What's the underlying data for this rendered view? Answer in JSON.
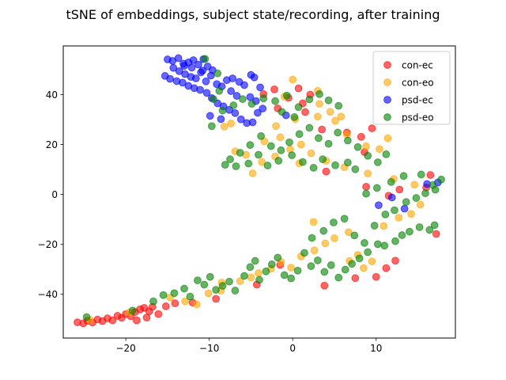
{
  "chart_data": {
    "type": "scatter",
    "title": "tSNE of embeddings, subject state/recording, after training",
    "xlabel": "",
    "ylabel": "",
    "xlim": [
      -27.5,
      19.5
    ],
    "ylim": [
      -57.5,
      59.5
    ],
    "xticks": [
      -20,
      -10,
      0,
      10
    ],
    "yticks": [
      -40,
      -20,
      0,
      20,
      40
    ],
    "grid": false,
    "legend_position": "top-right",
    "series": [
      {
        "name": "con-ec",
        "color": "#ff0000",
        "points": [
          [
            -25.8,
            -51.2
          ],
          [
            -25.1,
            -51.6
          ],
          [
            -24.6,
            -50.6
          ],
          [
            -24.0,
            -51.3
          ],
          [
            -23.4,
            -50.1
          ],
          [
            -22.8,
            -50.7
          ],
          [
            -22.2,
            -49.6
          ],
          [
            -21.6,
            -50.4
          ],
          [
            -21.0,
            -48.6
          ],
          [
            -20.5,
            -49.4
          ],
          [
            -20.0,
            -47.9
          ],
          [
            -19.4,
            -48.8
          ],
          [
            -18.9,
            -47.1
          ],
          [
            -18.3,
            -46.0
          ],
          [
            -17.8,
            -45.4
          ],
          [
            -17.2,
            -46.8
          ],
          [
            -16.8,
            -45.0
          ],
          [
            -18.7,
            -50.4
          ],
          [
            -17.5,
            -49.3
          ],
          [
            -16.1,
            -47.9
          ],
          [
            -15.2,
            -44.8
          ],
          [
            -14.1,
            -43.6
          ],
          [
            -12.0,
            -43.3
          ],
          [
            -9.2,
            -41.8
          ],
          [
            -4.3,
            -36.1
          ],
          [
            -1.5,
            -28.2
          ],
          [
            3.8,
            -36.5
          ],
          [
            7.5,
            -33.5
          ],
          [
            11.2,
            -29.5
          ],
          [
            10.0,
            -33.0
          ],
          [
            8.8,
            3.1
          ],
          [
            11.5,
            -0.5
          ],
          [
            16.0,
            2.8
          ],
          [
            17.2,
            -15.8
          ],
          [
            16.5,
            7.8
          ],
          [
            12.8,
            2.0
          ],
          [
            4.0,
            9.2
          ],
          [
            8.6,
            17.0
          ],
          [
            6.5,
            24.8
          ],
          [
            8.2,
            23.1
          ],
          [
            9.5,
            26.5
          ],
          [
            3.5,
            26.0
          ],
          [
            1.2,
            36.5
          ],
          [
            -0.5,
            38.7
          ],
          [
            0.7,
            42.5
          ],
          [
            2.1,
            40.0
          ],
          [
            -1.8,
            34.5
          ],
          [
            1.5,
            33.0
          ],
          [
            -3.5,
            40.2
          ],
          [
            -2.2,
            42.1
          ],
          [
            12.3,
            -26.5
          ]
        ]
      },
      {
        "name": "con-eo",
        "color": "#ffa500",
        "points": [
          [
            -24.3,
            -50.2
          ],
          [
            -19.6,
            -47.3
          ],
          [
            -14.7,
            -41.3
          ],
          [
            -12.9,
            -42.8
          ],
          [
            -10.1,
            -39.6
          ],
          [
            -8.5,
            -35.3
          ],
          [
            -6.3,
            -34.7
          ],
          [
            -5.0,
            -33.2
          ],
          [
            -4.1,
            -31.5
          ],
          [
            -2.6,
            -29.8
          ],
          [
            -1.4,
            -27.0
          ],
          [
            -0.2,
            -29.3
          ],
          [
            1.0,
            -24.8
          ],
          [
            2.6,
            -22.4
          ],
          [
            3.9,
            -19.6
          ],
          [
            5.0,
            -17.5
          ],
          [
            6.7,
            -15.1
          ],
          [
            7.8,
            -24.2
          ],
          [
            9.5,
            -26.8
          ],
          [
            10.9,
            -12.6
          ],
          [
            12.7,
            -9.3
          ],
          [
            14.2,
            -7.8
          ],
          [
            15.3,
            -4.1
          ],
          [
            14.6,
            3.9
          ],
          [
            12.1,
            6.2
          ],
          [
            9.0,
            8.4
          ],
          [
            6.2,
            10.9
          ],
          [
            4.0,
            13.5
          ],
          [
            2.2,
            16.5
          ],
          [
            1.0,
            20.0
          ],
          [
            -0.3,
            18.1
          ],
          [
            -2.1,
            15.2
          ],
          [
            -3.7,
            13.0
          ],
          [
            -4.8,
            8.5
          ],
          [
            -5.6,
            15.9
          ],
          [
            -6.9,
            17.3
          ],
          [
            -7.4,
            28.4
          ],
          [
            -8.2,
            27.2
          ],
          [
            -2.0,
            27.4
          ],
          [
            0.3,
            30.2
          ],
          [
            3.0,
            31.2
          ],
          [
            5.1,
            29.5
          ],
          [
            5.8,
            31.2
          ],
          [
            3.2,
            36.3
          ],
          [
            4.5,
            33.1
          ],
          [
            0.0,
            46.0
          ],
          [
            3.0,
            41.5
          ],
          [
            -1.0,
            39.2
          ],
          [
            6.5,
            24.0
          ],
          [
            8.8,
            19.3
          ],
          [
            11.4,
            22.5
          ],
          [
            10.4,
            18.2
          ],
          [
            -3.4,
            21.3
          ],
          [
            -1.5,
            22.9
          ],
          [
            0.8,
            12.5
          ],
          [
            6.8,
            -26.6
          ],
          [
            8.5,
            -29.5
          ],
          [
            -8.6,
            -38.5
          ],
          [
            -11.5,
            -44.0
          ],
          [
            2.5,
            -11.0
          ]
        ]
      },
      {
        "name": "psd-ec",
        "color": "#0000ff",
        "points": [
          [
            -15.0,
            54.1
          ],
          [
            -14.4,
            53.5
          ],
          [
            -13.7,
            54.6
          ],
          [
            -13.1,
            52.4
          ],
          [
            -12.5,
            52.9
          ],
          [
            -11.9,
            53.8
          ],
          [
            -11.3,
            52.0
          ],
          [
            -10.7,
            54.2
          ],
          [
            -10.2,
            51.3
          ],
          [
            -9.6,
            49.8
          ],
          [
            -14.3,
            50.7
          ],
          [
            -13.6,
            49.4
          ],
          [
            -12.9,
            48.2
          ],
          [
            -12.2,
            47.1
          ],
          [
            -11.6,
            46.5
          ],
          [
            -11.0,
            48.9
          ],
          [
            -10.4,
            45.3
          ],
          [
            -9.8,
            47.6
          ],
          [
            -9.1,
            44.2
          ],
          [
            -8.5,
            43.3
          ],
          [
            -15.3,
            47.5
          ],
          [
            -14.7,
            46.3
          ],
          [
            -13.9,
            45.4
          ],
          [
            -13.2,
            44.8
          ],
          [
            -12.5,
            43.5
          ],
          [
            -11.8,
            42.6
          ],
          [
            -11.1,
            41.9
          ],
          [
            -10.3,
            40.7
          ],
          [
            -9.7,
            38.6
          ],
          [
            -9.0,
            36.5
          ],
          [
            -8.3,
            35.3
          ],
          [
            -7.6,
            33.9
          ],
          [
            -6.9,
            32.6
          ],
          [
            -6.2,
            30.1
          ],
          [
            -5.5,
            28.6
          ],
          [
            -4.8,
            28.9
          ],
          [
            -4.2,
            32.7
          ],
          [
            -3.6,
            34.4
          ],
          [
            -7.9,
            45.8
          ],
          [
            -7.2,
            46.5
          ],
          [
            -6.4,
            45.1
          ],
          [
            -5.8,
            43.8
          ],
          [
            -5.0,
            47.9
          ],
          [
            -4.6,
            46.9
          ],
          [
            -3.9,
            42.9
          ],
          [
            -4.4,
            37.4
          ],
          [
            -5.1,
            39.0
          ],
          [
            -6.7,
            39.5
          ],
          [
            -9.9,
            31.5
          ],
          [
            -8.6,
            30.2
          ],
          [
            -0.8,
            31.7
          ],
          [
            10.3,
            -4.3
          ],
          [
            11.9,
            -1.2
          ],
          [
            13.4,
            -5.7
          ],
          [
            16.1,
            4.2
          ],
          [
            17.4,
            4.8
          ],
          [
            -12.1,
            50.8
          ],
          [
            -10.8,
            49.6
          ],
          [
            -13.0,
            51.5
          ],
          [
            -7.4,
            41.4
          ]
        ]
      },
      {
        "name": "psd-eo",
        "color": "#008000",
        "points": [
          [
            -24.7,
            -49.1
          ],
          [
            -19.2,
            -46.5
          ],
          [
            -16.7,
            -42.8
          ],
          [
            -15.5,
            -40.3
          ],
          [
            -14.2,
            -39.5
          ],
          [
            -13.0,
            -37.7
          ],
          [
            -12.3,
            -40.9
          ],
          [
            -11.4,
            -34.4
          ],
          [
            -10.6,
            -36.1
          ],
          [
            -9.9,
            -33.0
          ],
          [
            -9.2,
            -38.2
          ],
          [
            -8.4,
            -36.6
          ],
          [
            -7.6,
            -34.9
          ],
          [
            -6.9,
            -38.5
          ],
          [
            -5.8,
            -32.6
          ],
          [
            -5.1,
            -29.1
          ],
          [
            -4.5,
            -26.6
          ],
          [
            -4.0,
            -34.2
          ],
          [
            -3.2,
            -30.8
          ],
          [
            -2.5,
            -28.0
          ],
          [
            -1.8,
            -25.3
          ],
          [
            -1.0,
            -32.3
          ],
          [
            -0.2,
            -33.6
          ],
          [
            0.6,
            -30.5
          ],
          [
            1.4,
            -23.4
          ],
          [
            2.2,
            -28.7
          ],
          [
            3.0,
            -26.4
          ],
          [
            3.8,
            -31.0
          ],
          [
            4.6,
            -28.3
          ],
          [
            5.5,
            -33.3
          ],
          [
            6.3,
            -30.1
          ],
          [
            7.1,
            -27.8
          ],
          [
            8.0,
            -25.6
          ],
          [
            9.0,
            -23.1
          ],
          [
            10.2,
            -19.9
          ],
          [
            11.0,
            -20.5
          ],
          [
            12.3,
            -18.7
          ],
          [
            13.1,
            -16.3
          ],
          [
            14.0,
            -14.9
          ],
          [
            15.2,
            -13.1
          ],
          [
            16.4,
            -14.2
          ],
          [
            17.0,
            -12.3
          ],
          [
            2.3,
            -17.4
          ],
          [
            3.7,
            -14.6
          ],
          [
            4.9,
            -11.2
          ],
          [
            6.2,
            -9.7
          ],
          [
            7.4,
            -16.4
          ],
          [
            8.6,
            -19.4
          ],
          [
            9.8,
            -12.5
          ],
          [
            11.1,
            -8.0
          ],
          [
            12.2,
            -6.3
          ],
          [
            13.6,
            -3.0
          ],
          [
            14.8,
            -1.4
          ],
          [
            15.9,
            0.5
          ],
          [
            17.1,
            1.9
          ],
          [
            17.8,
            6.0
          ],
          [
            16.8,
            3.8
          ],
          [
            15.4,
            8.0
          ],
          [
            13.3,
            7.4
          ],
          [
            11.8,
            5.0
          ],
          [
            10.1,
            2.6
          ],
          [
            8.8,
            0.3
          ],
          [
            7.5,
            10.1
          ],
          [
            6.6,
            12.8
          ],
          [
            5.1,
            11.7
          ],
          [
            3.6,
            14.1
          ],
          [
            2.5,
            10.7
          ],
          [
            1.2,
            13.0
          ],
          [
            -0.1,
            15.7
          ],
          [
            -1.4,
            17.7
          ],
          [
            -2.6,
            19.4
          ],
          [
            -3.8,
            23.4
          ],
          [
            -5.1,
            19.8
          ],
          [
            -6.3,
            16.7
          ],
          [
            -7.5,
            14.1
          ],
          [
            -8.1,
            11.9
          ],
          [
            -6.8,
            11.3
          ],
          [
            -5.3,
            12.4
          ],
          [
            -4.1,
            15.9
          ],
          [
            -3.0,
            11.6
          ],
          [
            -1.7,
            13.5
          ],
          [
            -0.4,
            20.9
          ],
          [
            0.8,
            24.2
          ],
          [
            2.0,
            26.7
          ],
          [
            3.1,
            22.6
          ],
          [
            4.3,
            20.3
          ],
          [
            5.4,
            24.8
          ],
          [
            6.6,
            21.6
          ],
          [
            7.8,
            19.0
          ],
          [
            9.0,
            15.5
          ],
          [
            10.2,
            12.9
          ],
          [
            11.2,
            16.1
          ],
          [
            -9.7,
            27.4
          ],
          [
            -8.4,
            33.6
          ],
          [
            -7.1,
            35.7
          ],
          [
            -6.0,
            38.2
          ],
          [
            -4.9,
            36.3
          ],
          [
            -3.5,
            38.5
          ],
          [
            -2.1,
            37.4
          ],
          [
            -0.7,
            39.6
          ],
          [
            0.7,
            35.0
          ],
          [
            2.0,
            38.1
          ],
          [
            3.2,
            40.2
          ],
          [
            4.3,
            37.7
          ],
          [
            5.5,
            35.5
          ],
          [
            -1.3,
            33.1
          ],
          [
            0.2,
            31.0
          ],
          [
            -10.5,
            54.3
          ],
          [
            -9.0,
            48.5
          ],
          [
            -9.5,
            38.2
          ],
          [
            -8.8,
            41.5
          ]
        ]
      }
    ]
  }
}
